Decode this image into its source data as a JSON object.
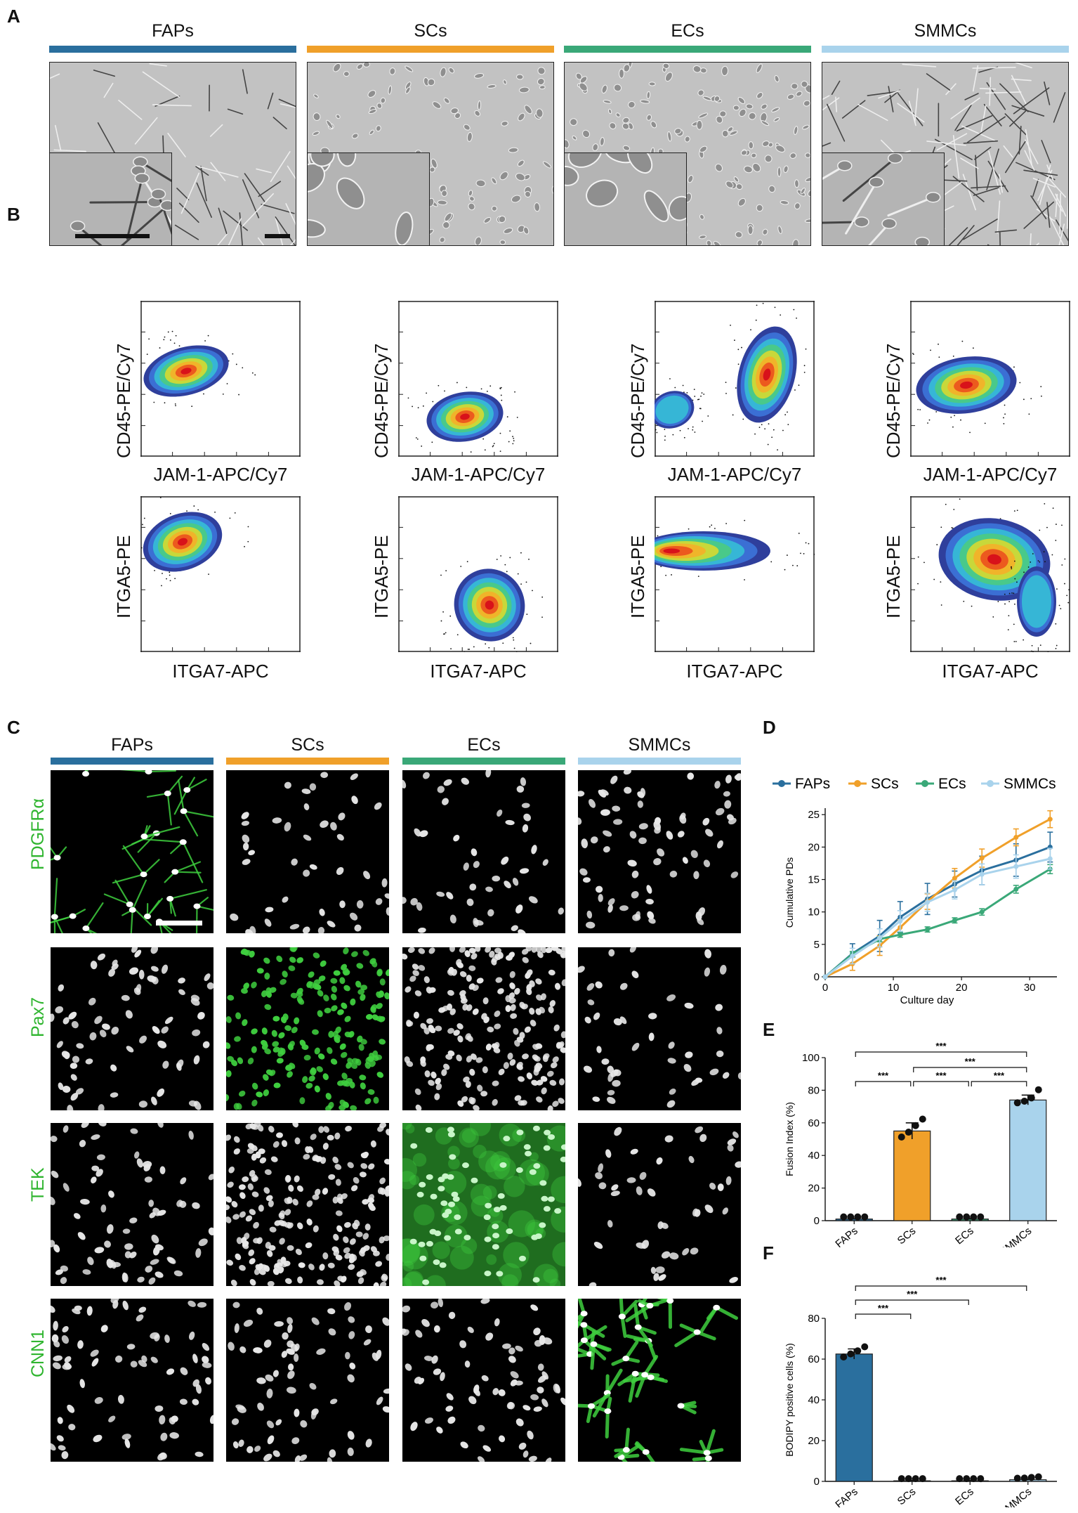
{
  "panel_letters": {
    "a": "A",
    "b": "B",
    "c": "C",
    "d": "D",
    "e": "E",
    "f": "F"
  },
  "groups": [
    {
      "label": "FAPs",
      "color": "#2a6f9e"
    },
    {
      "label": "SCs",
      "color": "#f0a02a"
    },
    {
      "label": "ECs",
      "color": "#3aa878"
    },
    {
      "label": "SMMCs",
      "color": "#a9d3ec"
    }
  ],
  "flow": {
    "row1": {
      "ylabel": "CD45-PE/Cy7",
      "xlabel": "JAM-1-APC/Cy7"
    },
    "row2": {
      "ylabel": "ITGA5-PE",
      "xlabel": "ITGA7-APC"
    }
  },
  "if_rows": [
    "PDGFRα",
    "Pax7",
    "TEK",
    "CNN1"
  ],
  "chart_data": [
    {
      "type": "line",
      "panel": "D",
      "xlabel": "Culture day",
      "ylabel": "Cumulative PDs",
      "xlim": [
        0,
        34
      ],
      "ylim": [
        0,
        26
      ],
      "xticks": [
        0,
        10,
        20,
        30
      ],
      "yticks": [
        0,
        5,
        10,
        15,
        20,
        25
      ],
      "legend_position": "top",
      "series": [
        {
          "name": "FAPs",
          "color": "#2a6f9e",
          "marker": "circle",
          "x": [
            0,
            4,
            8,
            11,
            15,
            19,
            23,
            28,
            33
          ],
          "y": [
            0,
            3.6,
            6.3,
            9.2,
            12.0,
            14.3,
            16.4,
            18.0,
            20.0
          ],
          "err": [
            0,
            1.5,
            2.4,
            2.4,
            2.4,
            2.0,
            2.2,
            2.5,
            2.3
          ]
        },
        {
          "name": "SCs",
          "color": "#f0a02a",
          "marker": "square",
          "x": [
            0,
            4,
            8,
            11,
            15,
            19,
            23,
            28,
            33
          ],
          "y": [
            0,
            2.0,
            4.8,
            7.6,
            11.6,
            15.2,
            18.3,
            21.5,
            24.3
          ],
          "err": [
            0,
            1.0,
            1.5,
            1.2,
            1.2,
            1.5,
            1.4,
            1.3,
            1.3
          ]
        },
        {
          "name": "ECs",
          "color": "#3aa878",
          "marker": "triangle",
          "x": [
            0,
            4,
            8,
            11,
            15,
            19,
            23,
            28,
            33
          ],
          "y": [
            0,
            3.5,
            5.8,
            6.5,
            7.3,
            8.7,
            10.0,
            13.5,
            16.6
          ],
          "err": [
            0,
            0.4,
            0.4,
            0.4,
            0.4,
            0.4,
            0.5,
            0.6,
            0.7
          ]
        },
        {
          "name": "SMMCs",
          "color": "#a9d3ec",
          "marker": "triangle-down",
          "x": [
            0,
            4,
            8,
            11,
            15,
            19,
            23,
            28,
            33
          ],
          "y": [
            0,
            3.2,
            6.0,
            8.6,
            11.5,
            13.4,
            15.8,
            17.0,
            18.2
          ],
          "err": [
            0,
            1.2,
            1.4,
            1.6,
            1.4,
            1.4,
            1.6,
            1.8,
            1.6
          ]
        }
      ]
    },
    {
      "type": "bar",
      "panel": "E",
      "ylabel": "Fusion Index (%)",
      "ylim": [
        0,
        100
      ],
      "yticks": [
        0,
        20,
        40,
        60,
        80,
        100
      ],
      "categories": [
        "FAPs",
        "SCs",
        "ECs",
        "SMMCs"
      ],
      "values": [
        1,
        55,
        1,
        74
      ],
      "err": [
        0.2,
        5,
        0.3,
        3
      ],
      "points": [
        [
          1,
          1,
          1,
          1
        ],
        [
          50,
          53,
          57,
          61
        ],
        [
          1,
          1,
          1,
          1
        ],
        [
          71,
          72,
          74,
          79
        ]
      ],
      "colors": [
        "#2a6f9e",
        "#f0a02a",
        "#3aa878",
        "#a9d3ec"
      ],
      "significance": [
        {
          "from": 0,
          "to": 1,
          "label": "***"
        },
        {
          "from": 1,
          "to": 2,
          "label": "***"
        },
        {
          "from": 2,
          "to": 3,
          "label": "***"
        },
        {
          "from": 1,
          "to": 3,
          "label": "***"
        },
        {
          "from": 0,
          "to": 3,
          "label": "***"
        }
      ]
    },
    {
      "type": "bar",
      "panel": "F",
      "ylabel": "BODIPY positive cells (%)",
      "ylim": [
        0,
        80
      ],
      "yticks": [
        0,
        20,
        40,
        60,
        80
      ],
      "categories": [
        "FAPs",
        "SCs",
        "ECs",
        "SMMCs"
      ],
      "values": [
        62.5,
        0.3,
        0.3,
        0.8
      ],
      "err": [
        2.5,
        0.1,
        0.1,
        0.3
      ],
      "points": [
        [
          60,
          61.5,
          63,
          65
        ],
        [
          0.3,
          0.3,
          0.3,
          0.3
        ],
        [
          0.3,
          0.3,
          0.3,
          0.3
        ],
        [
          0.5,
          0.6,
          0.9,
          1.2
        ]
      ],
      "colors": [
        "#2a6f9e",
        "#f0a02a",
        "#3aa878",
        "#a9d3ec"
      ],
      "significance": [
        {
          "from": 0,
          "to": 1,
          "label": "***"
        },
        {
          "from": 0,
          "to": 2,
          "label": "***"
        },
        {
          "from": 0,
          "to": 3,
          "label": "***"
        }
      ]
    }
  ]
}
